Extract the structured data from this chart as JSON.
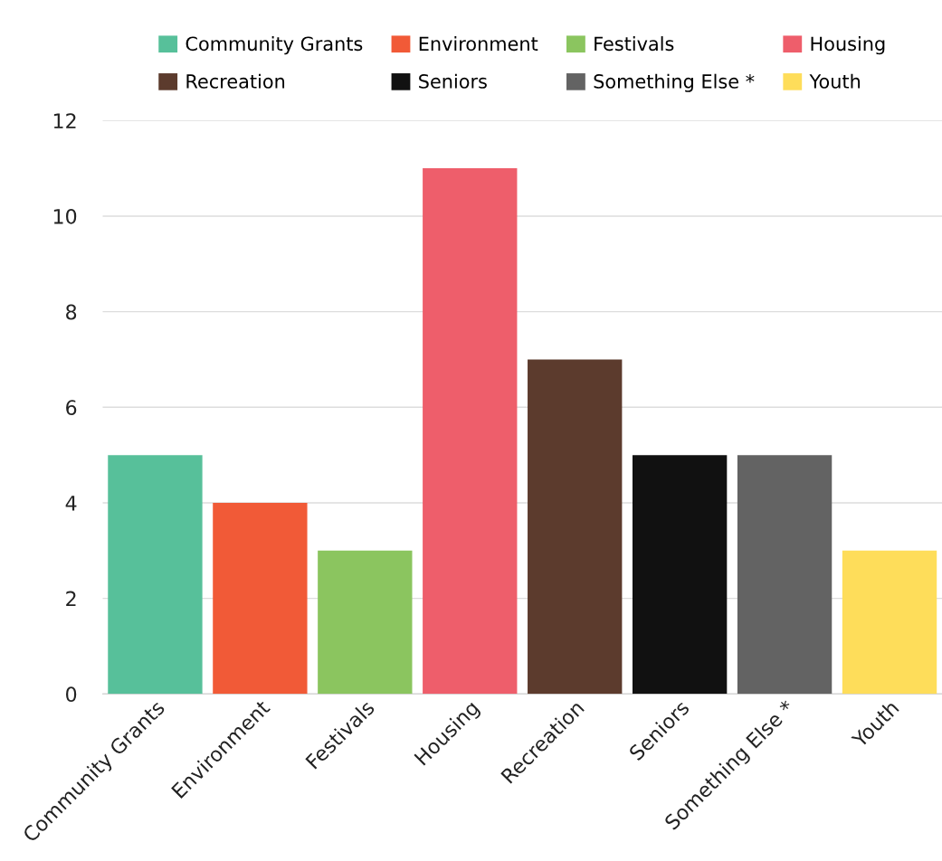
{
  "chart_data": {
    "type": "bar",
    "categories": [
      "Community Grants",
      "Environment",
      "Festivals",
      "Housing",
      "Recreation",
      "Seniors",
      "Something Else *",
      "Youth"
    ],
    "series": [
      {
        "name": "Community Grants",
        "color": "#57c09a",
        "values": [
          5,
          null,
          null,
          null,
          null,
          null,
          null,
          null
        ]
      },
      {
        "name": "Environment",
        "color": "#f15a37",
        "values": [
          null,
          4,
          null,
          null,
          null,
          null,
          null,
          null
        ]
      },
      {
        "name": "Festivals",
        "color": "#8bc55f",
        "values": [
          null,
          null,
          3,
          null,
          null,
          null,
          null,
          null
        ]
      },
      {
        "name": "Housing",
        "color": "#ee5e6b",
        "values": [
          null,
          null,
          null,
          11,
          null,
          null,
          null,
          null
        ]
      },
      {
        "name": "Recreation",
        "color": "#5c3b2d",
        "values": [
          null,
          null,
          null,
          null,
          7,
          null,
          null,
          null
        ]
      },
      {
        "name": "Seniors",
        "color": "#111111",
        "values": [
          null,
          null,
          null,
          null,
          null,
          5,
          null,
          null
        ]
      },
      {
        "name": "Something Else *",
        "color": "#636363",
        "values": [
          null,
          null,
          null,
          null,
          null,
          null,
          5,
          null
        ]
      },
      {
        "name": "Youth",
        "color": "#fedd5a",
        "values": [
          null,
          null,
          null,
          null,
          null,
          null,
          null,
          3
        ]
      }
    ],
    "ylim": [
      0,
      12
    ],
    "yticks": [
      0,
      2,
      4,
      6,
      8,
      10,
      12
    ],
    "grid": "y",
    "legend": "top"
  }
}
